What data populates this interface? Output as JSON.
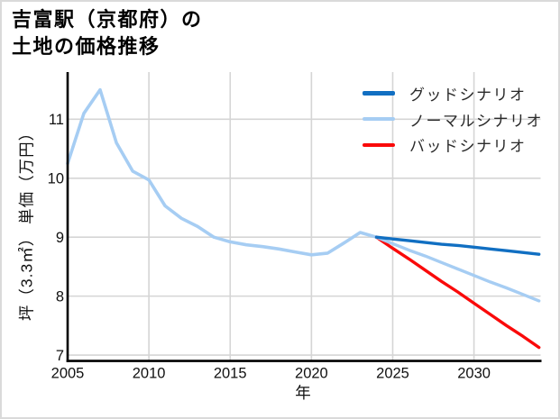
{
  "title": {
    "line1": "吉富駅（京都府）の",
    "line2": "土地の価格推移"
  },
  "chart_data": {
    "type": "line",
    "title": "吉富駅（京都府）の土地の価格推移",
    "xlabel": "年",
    "ylabel": "坪（3.3㎡） 単価（万円）",
    "xlim": [
      2005,
      2034.1
    ],
    "ylim": [
      6.9,
      11.8
    ],
    "x_ticks": [
      2005,
      2010,
      2015,
      2020,
      2025,
      2030
    ],
    "y_ticks": [
      7,
      8,
      9,
      10,
      11
    ],
    "grid": true,
    "grid_color": "#d5d5d5",
    "axis_color": "#000000",
    "legend_position": "upper right",
    "history": {
      "color": "#a6cdf3",
      "x": [
        2005,
        2006,
        2007,
        2008,
        2009,
        2010,
        2011,
        2012,
        2013,
        2014,
        2015,
        2016,
        2017,
        2018,
        2019,
        2020,
        2021,
        2022,
        2023,
        2024
      ],
      "y": [
        10.25,
        11.1,
        11.5,
        10.6,
        10.12,
        9.97,
        9.53,
        9.32,
        9.18,
        9.0,
        8.92,
        8.87,
        8.84,
        8.8,
        8.75,
        8.7,
        8.73,
        8.9,
        9.08,
        9.0
      ]
    },
    "scenarios": [
      {
        "name": "グッドシナリオ",
        "color": "#116fc2",
        "x": [
          2024,
          2025,
          2026,
          2027,
          2028,
          2029,
          2030,
          2031,
          2032,
          2033,
          2034
        ],
        "y": [
          9.0,
          8.97,
          8.94,
          8.91,
          8.88,
          8.86,
          8.83,
          8.8,
          8.77,
          8.74,
          8.71
        ]
      },
      {
        "name": "ノーマルシナリオ",
        "color": "#a6cdf3",
        "x": [
          2024,
          2025,
          2026,
          2027,
          2028,
          2029,
          2030,
          2031,
          2032,
          2033,
          2034
        ],
        "y": [
          9.0,
          8.89,
          8.78,
          8.68,
          8.57,
          8.46,
          8.35,
          8.24,
          8.14,
          8.03,
          7.92
        ]
      },
      {
        "name": "バッドシナリオ",
        "color": "#fa0a0a",
        "x": [
          2024,
          2025,
          2026,
          2027,
          2028,
          2029,
          2030,
          2031,
          2032,
          2033,
          2034
        ],
        "y": [
          9.0,
          8.81,
          8.63,
          8.44,
          8.25,
          8.07,
          7.88,
          7.69,
          7.5,
          7.32,
          7.13
        ]
      }
    ]
  }
}
